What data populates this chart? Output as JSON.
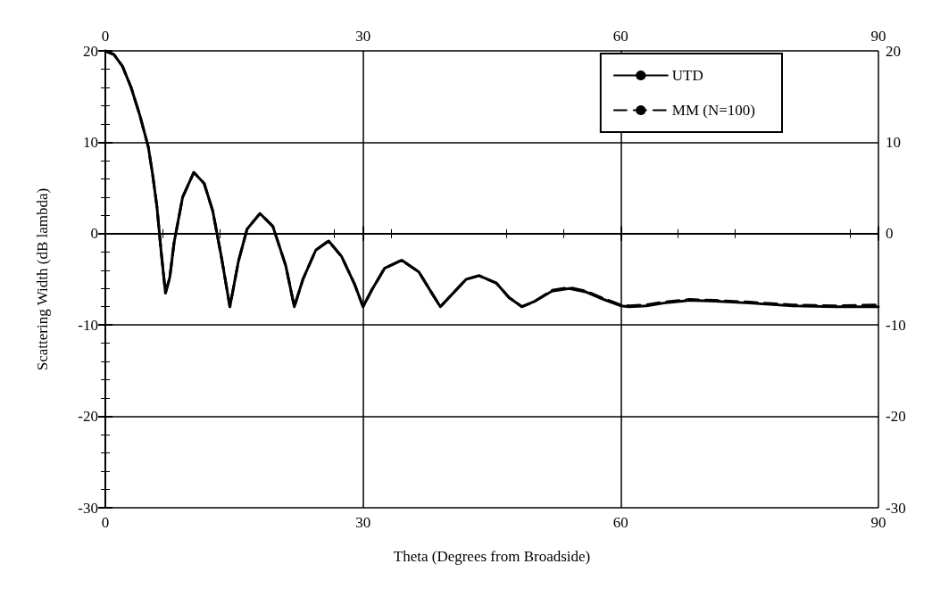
{
  "chart_data": {
    "type": "line",
    "xlabel": "Theta (Degrees from Broadside)",
    "ylabel": "Scattering Width (dB lambda)",
    "xlim": [
      0,
      90
    ],
    "xticks": [
      0,
      30,
      60,
      90
    ],
    "x2lim": [
      0,
      90
    ],
    "x2ticks": [
      0,
      30,
      60,
      90
    ],
    "ylim": [
      -30,
      20
    ],
    "yticks": [
      -30,
      -20,
      -10,
      0,
      10,
      20
    ],
    "y2lim": [
      -30,
      20
    ],
    "y2ticks": [
      -30,
      -20,
      -10,
      0,
      10,
      20
    ],
    "grid": true,
    "legend": "top right",
    "marker": "none",
    "series": [
      {
        "name": "UTD",
        "color": "#000000",
        "line_style": "solid",
        "x": [
          0,
          1,
          2,
          3,
          4,
          5,
          5.5,
          6,
          6.5,
          7,
          7.5,
          8,
          9,
          10.3,
          11.5,
          12.5,
          13.5,
          14.5,
          15.5,
          16.5,
          18,
          19.5,
          21,
          22,
          23,
          24.5,
          26,
          27.5,
          29,
          30,
          31,
          32.5,
          34.5,
          36.5,
          38,
          39,
          40.5,
          42,
          43.5,
          45.5,
          47,
          48.5,
          50,
          52,
          54,
          56,
          58,
          60,
          61,
          63,
          65,
          68,
          71,
          75,
          80,
          85,
          90
        ],
        "values": [
          20,
          19.6,
          18.3,
          16,
          13,
          9.5,
          6.5,
          3,
          -2,
          -6.5,
          -4.8,
          -1,
          4,
          6.7,
          5.5,
          2.5,
          -2.5,
          -8,
          -3,
          0.5,
          2.2,
          0.8,
          -3.5,
          -8,
          -5,
          -1.8,
          -0.8,
          -2.5,
          -5.5,
          -8,
          -6.2,
          -3.8,
          -2.9,
          -4.2,
          -6.5,
          -8,
          -6.5,
          -5,
          -4.6,
          -5.4,
          -7,
          -8,
          -7.4,
          -6.3,
          -6,
          -6.4,
          -7.2,
          -7.9,
          -8,
          -7.9,
          -7.6,
          -7.3,
          -7.4,
          -7.6,
          -7.9,
          -8,
          -8
        ]
      },
      {
        "name": "MM (N=100)",
        "color": "#000000",
        "line_style": "dashed",
        "x": [
          0,
          1,
          2,
          3,
          4,
          5,
          5.5,
          6,
          6.5,
          7,
          7.5,
          8,
          9,
          10.3,
          11.5,
          12.5,
          13.5,
          14.5,
          15.5,
          16.5,
          18,
          19.5,
          21,
          22,
          23,
          24.5,
          26,
          27.5,
          29,
          30,
          31,
          32.5,
          34.5,
          36.5,
          38,
          39,
          40.5,
          42,
          43.5,
          45.5,
          47,
          48.5,
          50,
          52,
          54,
          56,
          58,
          60,
          61,
          63,
          65,
          68,
          71,
          75,
          80,
          85,
          90
        ],
        "values": [
          20,
          19.6,
          18.3,
          16,
          13,
          9.5,
          6.5,
          3,
          -2,
          -6.5,
          -4.8,
          -1,
          4,
          6.7,
          5.5,
          2.5,
          -2.5,
          -8,
          -3,
          0.5,
          2.2,
          0.8,
          -3.5,
          -8,
          -5,
          -1.8,
          -0.8,
          -2.5,
          -5.5,
          -8,
          -6.2,
          -3.8,
          -2.9,
          -4.2,
          -6.5,
          -8,
          -6.5,
          -5,
          -4.6,
          -5.4,
          -7,
          -8,
          -7.4,
          -6.2,
          -5.9,
          -6.3,
          -7.1,
          -7.8,
          -7.9,
          -7.8,
          -7.5,
          -7.2,
          -7.3,
          -7.5,
          -7.8,
          -7.9,
          -7.8
        ]
      }
    ]
  }
}
